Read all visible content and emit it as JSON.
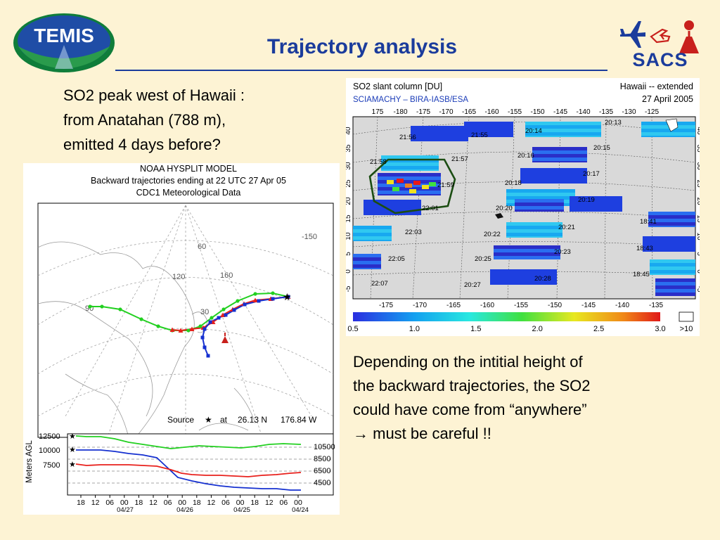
{
  "header": {
    "title": "Trajectory analysis",
    "temis_logo_text": "TEMIS",
    "sacs_label": "SACS"
  },
  "left_text": {
    "lines": [
      "SO2 peak west of Hawaii :",
      "from Anatahan (788 m),",
      "emitted 4 days before?"
    ]
  },
  "right_text": {
    "lines": [
      "Depending on the intitial height of",
      "the backward trajectories, the SO2",
      "could have come from “anywhere”",
      "→  must be careful !!"
    ]
  },
  "hysplit": {
    "title_lines": [
      "NOAA HYSPLIT MODEL",
      "Backward trajectories ending at 22 UTC 27 Apr 05",
      "CDC1 Meteorological Data"
    ],
    "source_label": "Source",
    "at_label": "at",
    "source_lat": "26.13 N",
    "source_lon": "176.84 W",
    "map_labels": [
      "-150",
      "60",
      "160",
      "120",
      "30",
      "90"
    ],
    "ylabel": "Meters AGL",
    "left_levels": [
      "12500",
      "10000",
      "7500"
    ],
    "right_levels": [
      "10500",
      "8500",
      "6500",
      "4500"
    ],
    "time_ticks": [
      "18",
      "12",
      "06",
      "00",
      "18",
      "12",
      "06",
      "00",
      "18",
      "12",
      "06",
      "00",
      "18",
      "12",
      "06",
      "00"
    ],
    "date_labels": [
      "04/27",
      "04/26",
      "04/25",
      "04/24"
    ],
    "colors": {
      "red": "#e8201c",
      "blue": "#1530d0",
      "green": "#22d020"
    }
  },
  "sciamachy": {
    "title": "SO2 slant column [DU]",
    "instrument": "SCIAMACHY  –  BIRA-IASB/ESA",
    "region": "Hawaii -- extended",
    "date": "27 April 2005",
    "top_lon_ticks": [
      "175",
      "-180",
      "-175",
      "-170",
      "-165",
      "-160",
      "-155",
      "-150",
      "-145",
      "-140",
      "-135",
      "-130",
      "-125"
    ],
    "bottom_lon_ticks": [
      "-175",
      "-170",
      "-165",
      "-160",
      "-155",
      "-150",
      "-145",
      "-140",
      "-135"
    ],
    "lat_ticks": [
      "40",
      "35",
      "30",
      "25",
      "20",
      "15",
      "10",
      "5",
      "0",
      "-5"
    ],
    "orbit_times": [
      "21:56",
      "21:55",
      "20:14",
      "20:13",
      "20:15",
      "21:57",
      "20:16",
      "21:58",
      "20:17",
      "21:59",
      "20:18",
      "20:19",
      "22:01",
      "20:20",
      "22:03",
      "20:21",
      "20:22",
      "18:41",
      "22:05",
      "20:23",
      "18:43",
      "20:25",
      "18:45",
      "22:07",
      "20:28",
      "20:27"
    ],
    "colorbar_ticks": [
      "0.5",
      "1.0",
      "1.5",
      "2.0",
      "2.5",
      "3.0"
    ],
    "colorbar_over": ">10"
  }
}
